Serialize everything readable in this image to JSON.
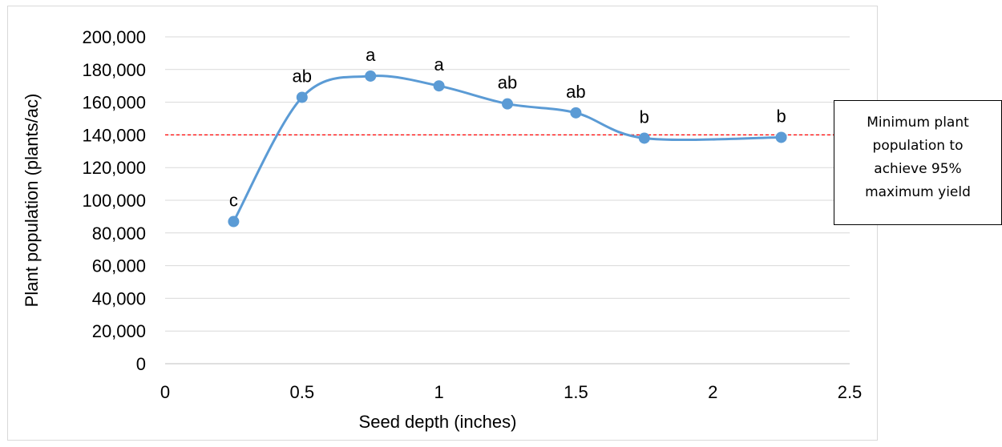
{
  "chart_data": {
    "type": "scatter",
    "xlabel": "Seed depth (inches)",
    "ylabel": "Plant population (plants/ac)",
    "xlim": [
      0,
      2.5
    ],
    "ylim": [
      0,
      200000
    ],
    "x_ticks": [
      "0",
      "0.5",
      "1",
      "1.5",
      "2",
      "2.5"
    ],
    "y_ticks": [
      "0",
      "20,000",
      "40,000",
      "60,000",
      "80,000",
      "100,000",
      "120,000",
      "140,000",
      "160,000",
      "180,000",
      "200,000"
    ],
    "grid": true,
    "series": [
      {
        "x": [
          0.25,
          0.5,
          0.75,
          1.0,
          1.25,
          1.5,
          1.75,
          2.25
        ],
        "y": [
          87000,
          163000,
          176000,
          170000,
          159000,
          153500,
          138000,
          138500
        ],
        "labels": [
          "c",
          "ab",
          "a",
          "a",
          "ab",
          "ab",
          "b",
          "b"
        ],
        "color": "#5b9bd5",
        "smooth": true
      }
    ],
    "reference_line": {
      "y": 140000,
      "color": "#ff0000",
      "style": "dashed"
    },
    "annotation": {
      "lines": [
        "Minimum plant",
        "population to",
        "achieve 95%",
        "maximum yield"
      ]
    }
  }
}
